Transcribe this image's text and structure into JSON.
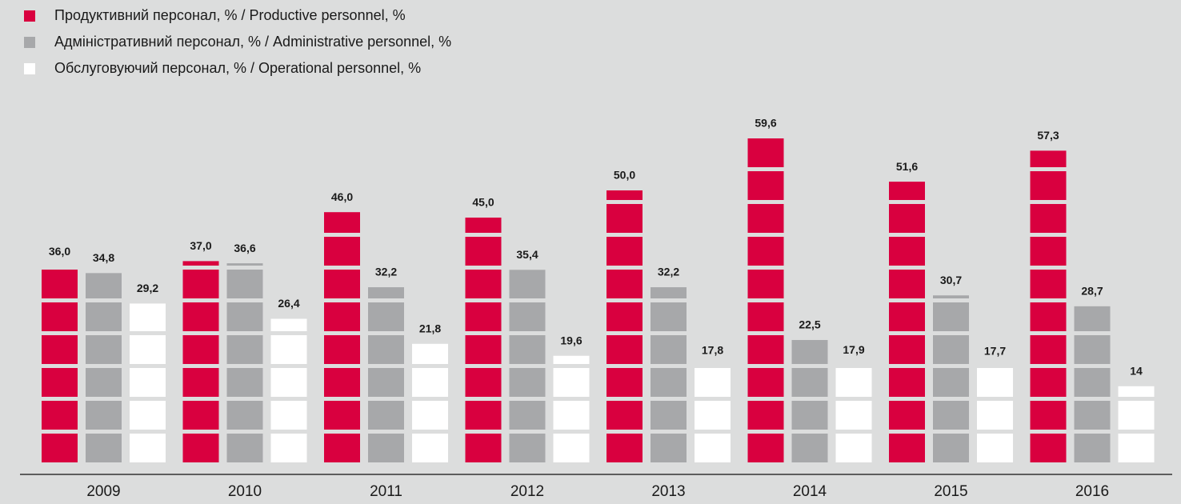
{
  "chart_data": {
    "type": "bar",
    "categories": [
      "2009",
      "2010",
      "2011",
      "2012",
      "2013",
      "2014",
      "2015",
      "2016"
    ],
    "series": [
      {
        "name": "Продуктивний персонал, % / Productive personnel, %",
        "color": "#d9003f",
        "values": [
          36.0,
          37.0,
          46.0,
          45.0,
          50.0,
          59.6,
          51.6,
          57.3
        ],
        "value_labels": [
          "36,0",
          "37,0",
          "46,0",
          "45,0",
          "50,0",
          "59,6",
          "51,6",
          "57,3"
        ]
      },
      {
        "name": "Адміністративний персонал, % / Administrative personnel, %",
        "color": "#a7a8aa",
        "values": [
          34.8,
          36.6,
          32.2,
          35.4,
          32.2,
          22.5,
          30.7,
          28.7
        ],
        "value_labels": [
          "34,8",
          "36,6",
          "32,2",
          "35,4",
          "32,2",
          "22,5",
          "30,7",
          "28,7"
        ]
      },
      {
        "name": "Обслуговуючий персонал, % / Operational personnel, %",
        "color": "#ffffff",
        "values": [
          29.2,
          26.4,
          21.8,
          19.6,
          17.8,
          17.9,
          17.7,
          14
        ],
        "value_labels": [
          "29,2",
          "26,4",
          "21,8",
          "19,6",
          "17,8",
          "17,9",
          "17,7",
          "14"
        ]
      }
    ],
    "legend": "top-left"
  }
}
